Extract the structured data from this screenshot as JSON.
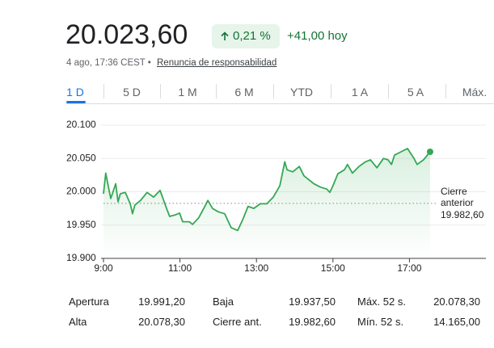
{
  "header": {
    "price": "20.023,60",
    "change_pct": "0,21 %",
    "change_abs": "+41,00 hoy",
    "timestamp": "4 ago, 17:36 CEST •",
    "disclaimer": "Renuncia de responsabilidad"
  },
  "tabs": [
    "1 D",
    "5 D",
    "1 M",
    "6 M",
    "YTD",
    "1 A",
    "5 A",
    "Máx."
  ],
  "chart_data": {
    "type": "line",
    "color": "#34a853",
    "grid": true,
    "x": [
      9.0,
      9.06,
      9.13,
      9.19,
      9.32,
      9.38,
      9.44,
      9.57,
      9.7,
      9.76,
      9.82,
      9.97,
      10.14,
      10.31,
      10.48,
      10.65,
      10.73,
      10.86,
      10.99,
      11.07,
      11.24,
      11.33,
      11.49,
      11.66,
      11.73,
      11.85,
      12.0,
      12.17,
      12.34,
      12.51,
      12.64,
      12.78,
      12.93,
      13.1,
      13.27,
      13.44,
      13.53,
      13.61,
      13.74,
      13.8,
      13.95,
      14.12,
      14.24,
      14.5,
      14.67,
      14.84,
      14.92,
      15.0,
      15.13,
      15.3,
      15.38,
      15.51,
      15.68,
      15.85,
      15.98,
      16.15,
      16.32,
      16.44,
      16.53,
      16.61,
      16.78,
      16.95,
      17.12,
      17.2,
      17.37,
      17.54
    ],
    "values": [
      19997,
      20028,
      20007,
      19990,
      20012,
      19985,
      19997,
      19999,
      19982,
      19967,
      19980,
      19987,
      19999,
      19992,
      20002,
      19975,
      19963,
      19965,
      19968,
      19955,
      19955,
      19951,
      19961,
      19979,
      19987,
      19975,
      19970,
      19967,
      19946,
      19942,
      19958,
      19978,
      19975,
      19982,
      19982,
      19992,
      20001,
      20009,
      20045,
      20033,
      20030,
      20038,
      20024,
      20012,
      20007,
      20004,
      19999,
      20009,
      20027,
      20033,
      20041,
      20028,
      20038,
      20045,
      20048,
      20036,
      20050,
      20048,
      20041,
      20055,
      20060,
      20065,
      20050,
      20041,
      20048,
      20060
    ],
    "xlim": [
      9,
      19
    ],
    "xticks": [
      {
        "value": 9,
        "label": "9:00"
      },
      {
        "value": 11,
        "label": "11:00"
      },
      {
        "value": 13,
        "label": "13:00"
      },
      {
        "value": 15,
        "label": "15:00"
      },
      {
        "value": 17,
        "label": "17:00"
      }
    ],
    "ylim": [
      19900,
      20100
    ],
    "yticks": [
      {
        "value": 19900,
        "label": "19.900"
      },
      {
        "value": 19950,
        "label": "19.950"
      },
      {
        "value": 20000,
        "label": "20.000"
      },
      {
        "value": 20050,
        "label": "20.050"
      },
      {
        "value": 20100,
        "label": "20.100"
      }
    ],
    "previous_close_label": "Cierre anterior",
    "previous_close": {
      "value": 19982.6,
      "label": "19.982,60"
    }
  },
  "stats": [
    [
      "Apertura",
      "19.991,20",
      "Baja",
      "19.937,50",
      "Máx. 52 s.",
      "20.078,30"
    ],
    [
      "Alta",
      "20.078,30",
      "Cierre ant.",
      "19.982,60",
      "Mín. 52 s.",
      "14.165,00"
    ]
  ]
}
